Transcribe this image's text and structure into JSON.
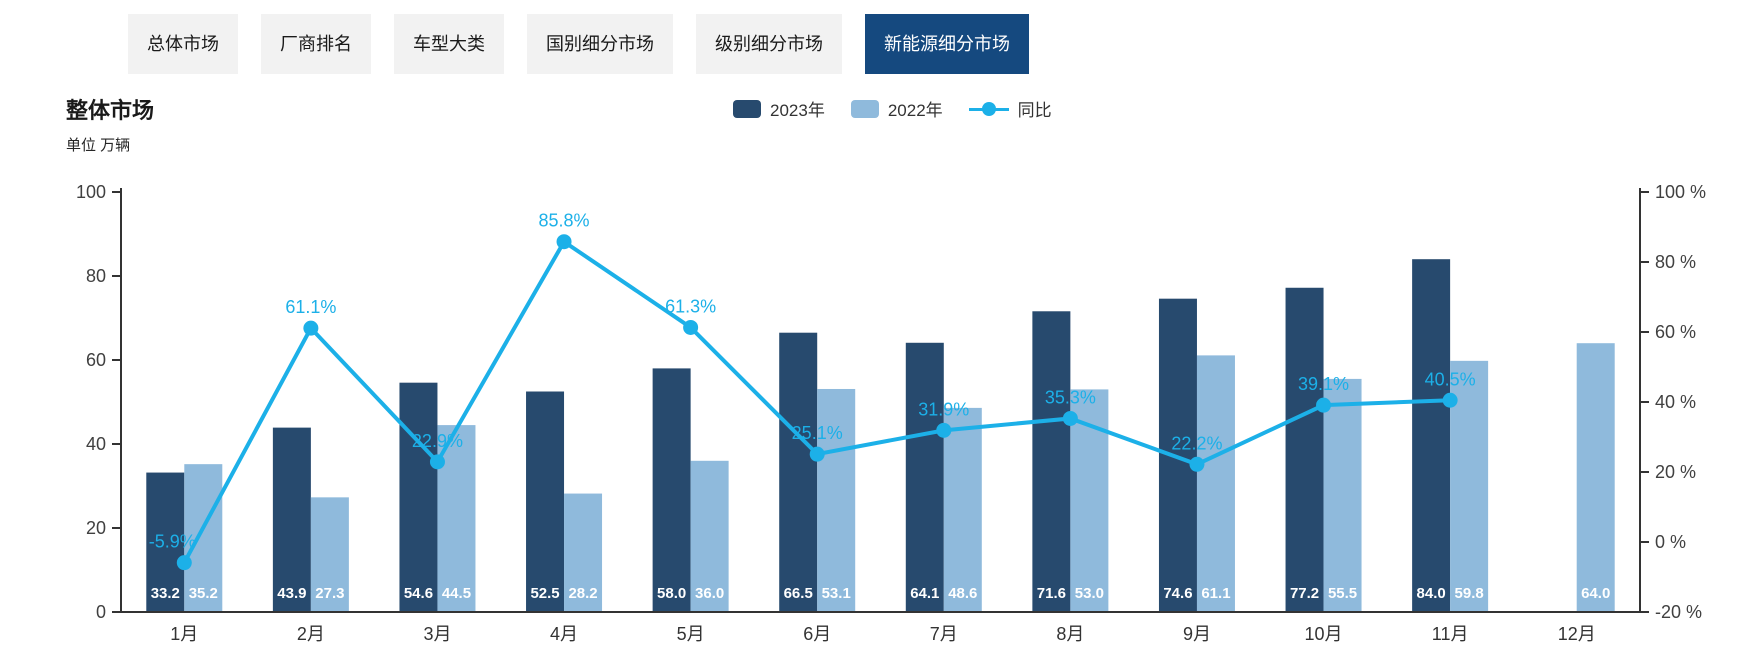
{
  "tabs": [
    {
      "id": "overall-market",
      "label": "总体市场",
      "active": false
    },
    {
      "id": "oem-ranking",
      "label": "厂商排名",
      "active": false
    },
    {
      "id": "vehicle-category",
      "label": "车型大类",
      "active": false
    },
    {
      "id": "country-segment",
      "label": "国别细分市场",
      "active": false
    },
    {
      "id": "class-segment",
      "label": "级别细分市场",
      "active": false
    },
    {
      "id": "nev-segment",
      "label": "新能源细分市场",
      "active": true
    }
  ],
  "page": {
    "title": "整体市场",
    "unit_label": "单位 万辆"
  },
  "colors": {
    "bar_2023": "#274a6e",
    "bar_2022": "#8fbadc",
    "line": "#1cb0e8",
    "tab_active_bg": "#15497f",
    "tab_bg": "#f2f2f2",
    "axis": "#333333",
    "tick_text": "#404040",
    "bar_value_text": "#ffffff"
  },
  "chart_data": {
    "type": "bar",
    "subtype": "grouped-bars-with-line",
    "title": "整体市场",
    "unit": "万辆",
    "categories": [
      "1月",
      "2月",
      "3月",
      "4月",
      "5月",
      "6月",
      "7月",
      "8月",
      "9月",
      "10月",
      "11月",
      "12月"
    ],
    "series": [
      {
        "name": "2023年",
        "type": "bar",
        "axis": "left",
        "color": "#274a6e",
        "values": [
          33.2,
          43.9,
          54.6,
          52.5,
          58.0,
          66.5,
          64.1,
          71.6,
          74.6,
          77.2,
          84.0,
          null
        ]
      },
      {
        "name": "2022年",
        "type": "bar",
        "axis": "left",
        "color": "#8fbadc",
        "values": [
          35.2,
          27.3,
          44.5,
          28.2,
          36.0,
          53.1,
          48.6,
          53.0,
          61.1,
          55.5,
          59.8,
          64.0
        ]
      },
      {
        "name": "同比",
        "type": "line",
        "axis": "right",
        "color": "#1cb0e8",
        "unit": "%",
        "values": [
          -5.9,
          61.1,
          22.9,
          85.8,
          61.3,
          25.1,
          31.9,
          35.3,
          22.2,
          39.1,
          40.5,
          null
        ]
      }
    ],
    "left_axis": {
      "min": 0,
      "max": 100,
      "step": 20,
      "tick_labels": [
        "0",
        "20",
        "40",
        "60",
        "80",
        "100"
      ]
    },
    "right_axis": {
      "min": -20,
      "max": 100,
      "step": 20,
      "tick_labels": [
        "-20 %",
        "0 %",
        "20 %",
        "40 %",
        "60 %",
        "80 %",
        "100 %"
      ]
    },
    "legend_position": "top-center",
    "grid": false,
    "bar_value_labels_position": "inside-bottom",
    "line_value_labels_position": "above-point"
  }
}
